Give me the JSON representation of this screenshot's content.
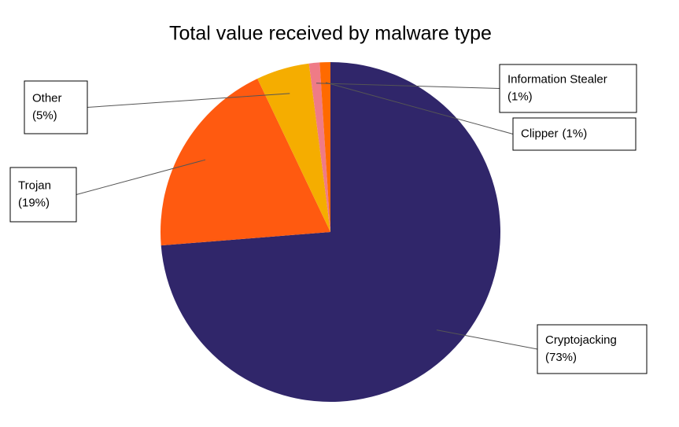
{
  "chart_data": {
    "type": "pie",
    "title": "Total value received by malware type",
    "categories": [
      "Cryptojacking",
      "Trojan",
      "Other",
      "Information Stealer",
      "Clipper"
    ],
    "values": [
      73,
      19,
      5,
      1,
      1
    ],
    "value_labels": [
      "(73%)",
      "(19%)",
      "(5%)",
      "(1%)",
      "(1%)"
    ],
    "colors": [
      "#30266a",
      "#ff5a10",
      "#f5ad00",
      "#ef7b86",
      "#ff6a00"
    ]
  }
}
